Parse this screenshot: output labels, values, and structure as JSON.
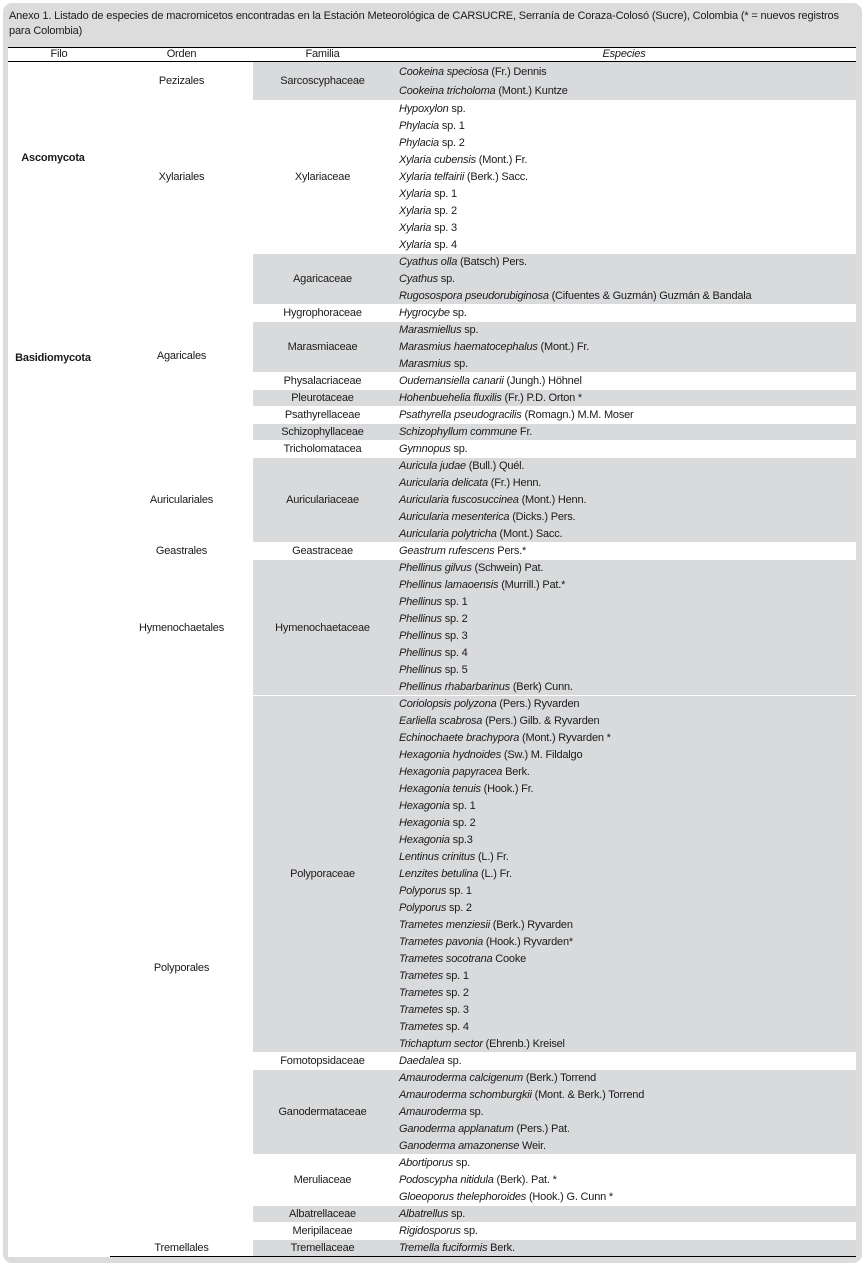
{
  "caption": "Anexo 1. Listado de especies de macromicetos encontradas en la Estación Meteorológica de CARSUCRE, Serranía de Coraza-Colosó (Sucre), Colombia (* = nuevos registros para Colombia)",
  "headers": {
    "filo": "Filo",
    "orden": "Orden",
    "familia": "Familia",
    "especies": "Especies"
  },
  "colors": {
    "shade": "#d9dadc",
    "frame": "#dcdcdc"
  },
  "filos": [
    {
      "name": "Ascomycota",
      "orders": [
        {
          "name": "Pezizales",
          "families": [
            {
              "name": "Sarcoscyphaceae",
              "shaded": true,
              "species": [
                [
                  "Cookeina speciosa",
                  " (Fr.) Dennis"
                ],
                [
                  "Cookeina tricholoma",
                  " (Mont.) Kuntze"
                ]
              ]
            }
          ]
        },
        {
          "name": "Xylariales",
          "families": [
            {
              "name": "Xylariaceae",
              "shaded": false,
              "species": [
                [
                  "Hypoxylon",
                  " sp."
                ],
                [
                  "Phylacia",
                  " sp. 1"
                ],
                [
                  "Phylacia",
                  " sp. 2"
                ],
                [
                  "Xylaria cubensis",
                  " (Mont.) Fr."
                ],
                [
                  "Xylaria telfairii",
                  " (Berk.) Sacc."
                ],
                [
                  "Xylaria",
                  " sp. 1"
                ],
                [
                  "Xylaria",
                  " sp. 2"
                ],
                [
                  "Xylaria",
                  " sp. 3"
                ],
                [
                  "Xylaria",
                  " sp. 4"
                ]
              ]
            }
          ]
        }
      ]
    },
    {
      "name": "Basidiomycota",
      "orders": [
        {
          "name": "Agaricales",
          "families": [
            {
              "name": "Agaricaceae",
              "shaded": true,
              "species": [
                [
                  "Cyathus olla",
                  " (Batsch) Pers."
                ],
                [
                  "Cyathus",
                  " sp."
                ],
                [
                  "Rugosospora pseudorubiginosa",
                  " (Cifuentes & Guzmán) Guzmán & Bandala"
                ]
              ]
            },
            {
              "name": "Hygrophoraceae",
              "shaded": false,
              "species": [
                [
                  "Hygrocybe",
                  " sp."
                ]
              ]
            },
            {
              "name": "Marasmiaceae",
              "shaded": true,
              "species": [
                [
                  "Marasmiellus",
                  " sp."
                ],
                [
                  "Marasmius haematocephalus",
                  " (Mont.) Fr."
                ],
                [
                  "Marasmius",
                  " sp."
                ]
              ]
            },
            {
              "name": "Physalacriaceae",
              "shaded": false,
              "species": [
                [
                  "Oudemansiella canarii",
                  " (Jungh.) Höhnel"
                ]
              ]
            },
            {
              "name": "Pleurotaceae",
              "shaded": true,
              "species": [
                [
                  "Hohenbuehelia fluxilis",
                  " (Fr.) P.D. Orton *"
                ]
              ]
            },
            {
              "name": "Psathyrellaceae",
              "shaded": false,
              "species": [
                [
                  "Psathyrella pseudogracilis",
                  " (Romagn.) M.M. Moser"
                ]
              ]
            },
            {
              "name": "Schizophyllaceae",
              "shaded": true,
              "species": [
                [
                  "Schizophyllum commune",
                  " Fr."
                ]
              ]
            },
            {
              "name": "Tricholomatacea",
              "shaded": false,
              "species": [
                [
                  "Gymnopus",
                  " sp."
                ]
              ]
            }
          ]
        },
        {
          "name": "Auriculariales",
          "families": [
            {
              "name": "Auriculariaceae",
              "shaded": true,
              "species": [
                [
                  "Auricula judae",
                  " (Bull.) Quél."
                ],
                [
                  "Auricularia delicata",
                  " (Fr.) Henn."
                ],
                [
                  "Auricularia fuscosuccinea",
                  " (Mont.) Henn."
                ],
                [
                  "Auricularia mesenterica",
                  " (Dicks.) Pers."
                ],
                [
                  "Auricularia polytricha",
                  " (Mont.) Sacc."
                ]
              ]
            }
          ]
        },
        {
          "name": "Geastrales",
          "families": [
            {
              "name": "Geastraceae",
              "shaded": false,
              "species": [
                [
                  "Geastrum rufescens",
                  " Pers.*"
                ]
              ]
            }
          ]
        },
        {
          "name": "Hymenochaetales",
          "families": [
            {
              "name": "Hymenochaetaceae",
              "shaded": true,
              "species": [
                [
                  "Phellinus gilvus",
                  " (Schwein) Pat."
                ],
                [
                  "Phellinus lamaoensis",
                  " (Murrill.) Pat.*"
                ],
                [
                  "Phellinus",
                  " sp. 1"
                ],
                [
                  "Phellinus",
                  " sp. 2"
                ],
                [
                  "Phellinus",
                  " sp. 3"
                ],
                [
                  "Phellinus",
                  " sp. 4"
                ],
                [
                  "Phellinus",
                  " sp. 5"
                ],
                [
                  "Phellinus rhabarbarinus",
                  " (Berk) Cunn."
                ]
              ]
            }
          ]
        },
        {
          "name": "Polyporales",
          "families": [
            {
              "name": "Polyporaceae",
              "shaded": true,
              "species": [
                [
                  "Coriolopsis polyzona",
                  " (Pers.) Ryvarden"
                ],
                [
                  "Earliella scabrosa",
                  " (Pers.) Gilb. & Ryvarden"
                ],
                [
                  "Echinochaete brachypora",
                  " (Mont.) Ryvarden *"
                ],
                [
                  "Hexagonia hydnoides",
                  " (Sw.) M. Fildalgo"
                ],
                [
                  "Hexagonia papyracea",
                  " Berk."
                ],
                [
                  "Hexagonia tenuis",
                  " (Hook.) Fr."
                ],
                [
                  "Hexagonia",
                  " sp. 1"
                ],
                [
                  "Hexagonia",
                  " sp. 2"
                ],
                [
                  "Hexagonia",
                  " sp.3"
                ],
                [
                  "Lentinus crinitus",
                  " (L.) Fr."
                ],
                [
                  "Lenzites betulina",
                  " (L.) Fr."
                ],
                [
                  "Polyporus",
                  " sp. 1"
                ],
                [
                  "Polyporus",
                  " sp. 2"
                ],
                [
                  "Trametes menziesii",
                  " (Berk.) Ryvarden"
                ],
                [
                  "Trametes pavonia",
                  " (Hook.) Ryvarden*"
                ],
                [
                  "Trametes socotrana",
                  " Cooke"
                ],
                [
                  "Trametes",
                  " sp. 1"
                ],
                [
                  "Trametes",
                  " sp. 2"
                ],
                [
                  "Trametes",
                  " sp. 3"
                ],
                [
                  "Trametes",
                  " sp. 4"
                ],
                [
                  "Trichaptum sector",
                  " (Ehrenb.) Kreisel"
                ]
              ]
            },
            {
              "name": "Fomotopsidaceae",
              "shaded": false,
              "species": [
                [
                  "Daedalea",
                  " sp."
                ]
              ]
            },
            {
              "name": "Ganodermataceae",
              "shaded": true,
              "species": [
                [
                  "Amauroderma calcigenum",
                  " (Berk.) Torrend"
                ],
                [
                  "Amauroderma schomburgkii",
                  " (Mont. & Berk.) Torrend"
                ],
                [
                  "Amauroderma",
                  " sp."
                ],
                [
                  "Ganoderma applanatum",
                  " (Pers.) Pat."
                ],
                [
                  "Ganoderma amazonense",
                  " Weir."
                ]
              ]
            },
            {
              "name": "Meruliaceae",
              "shaded": false,
              "species": [
                [
                  "Abortiporus",
                  " sp."
                ],
                [
                  "Podoscypha nitidula",
                  " (Berk). Pat. *"
                ],
                [
                  "Gloeoporus thelephoroides",
                  " (Hook.) G. Cunn *"
                ]
              ]
            },
            {
              "name": "Albatrellaceae",
              "shaded": true,
              "species": [
                [
                  "Albatrellus",
                  " sp."
                ]
              ]
            },
            {
              "name": "Meripilaceae",
              "shaded": false,
              "species": [
                [
                  "Rigidosporus",
                  " sp."
                ]
              ]
            }
          ]
        },
        {
          "name": "Tremellales",
          "families": [
            {
              "name": "Tremellaceae",
              "shaded": true,
              "species": [
                [
                  "Tremella fuciformis",
                  " Berk."
                ]
              ]
            }
          ]
        }
      ]
    }
  ]
}
